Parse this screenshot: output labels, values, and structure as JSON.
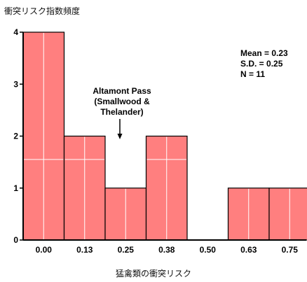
{
  "chart_data": {
    "type": "bar",
    "categories": [
      "0.00",
      "0.13",
      "0.25",
      "0.38",
      "0.50",
      "0.63",
      "0.75"
    ],
    "values": [
      4,
      2,
      1,
      2,
      0,
      1,
      1
    ],
    "title": "",
    "ylabel": "衝突リスク指数頻度",
    "xlabel": "猛禽類の衝突リスク",
    "ylim": [
      0,
      4
    ],
    "yticks": [
      0,
      1,
      2,
      3,
      4
    ],
    "colors": {
      "bar": "#ff7f7f",
      "edge": "#000000",
      "grid": "#ffffff"
    },
    "stats": [
      "Mean = 0.23",
      "S.D. = 0.25",
      "N = 11"
    ],
    "annotation": {
      "lines": [
        "Altamont Pass",
        "(Smallwood &",
        "Thelander)"
      ],
      "value": 0.23
    }
  }
}
